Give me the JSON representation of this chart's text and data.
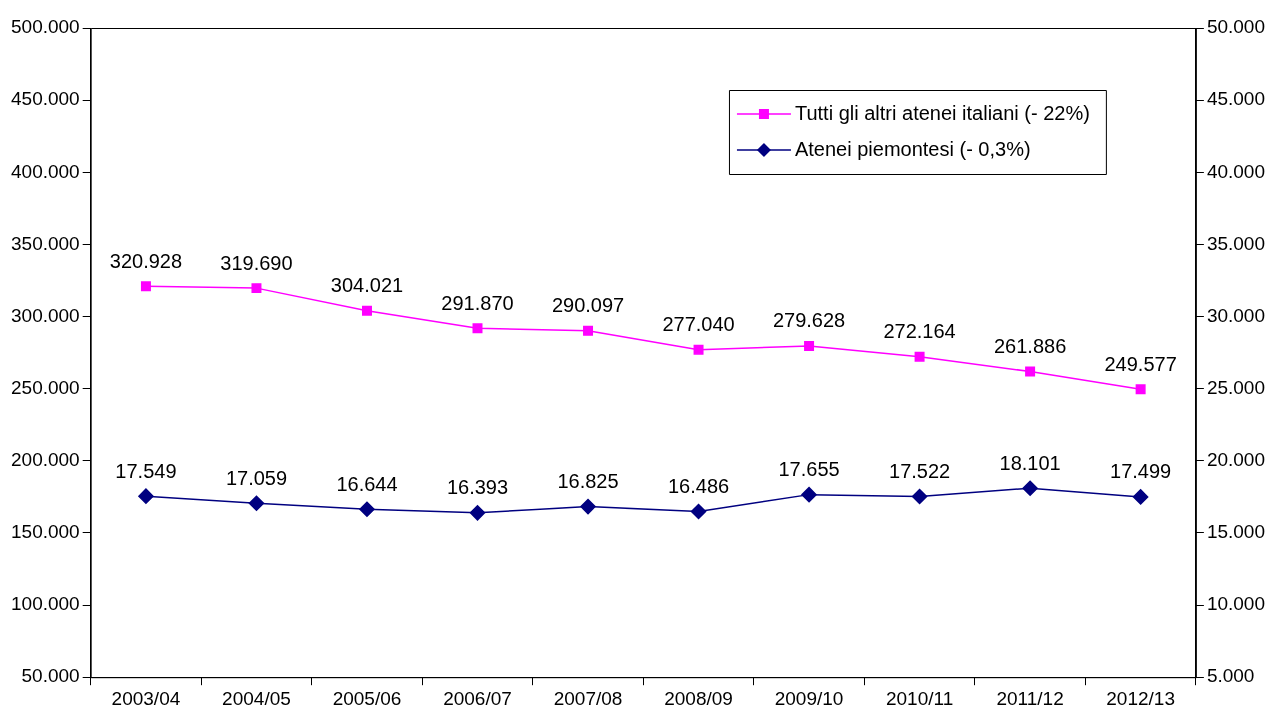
{
  "chart_data": {
    "type": "line",
    "categories": [
      "2003/04",
      "2004/05",
      "2005/06",
      "2006/07",
      "2007/08",
      "2008/09",
      "2009/10",
      "2010/11",
      "2011/12",
      "2012/13"
    ],
    "series": [
      {
        "name": "Tutti gli altri atenei italiani (- 22%)",
        "color": "#ff00ff",
        "marker": "square",
        "values": [
          320928,
          319690,
          304021,
          291870,
          290097,
          277040,
          279628,
          272164,
          261886,
          249577
        ],
        "value_labels": [
          "320.928",
          "319.690",
          "304.021",
          "291.870",
          "290.097",
          "277.040",
          "279.628",
          "272.164",
          "261.886",
          "249.577"
        ]
      },
      {
        "name": "Atenei piemontesi (- 0,3%)",
        "color": "#000080",
        "marker": "diamond",
        "axis": "y2",
        "values": [
          17549,
          17059,
          16644,
          16393,
          16825,
          16486,
          17655,
          17522,
          18101,
          17499
        ],
        "value_labels": [
          "17.549",
          "17.059",
          "16.644",
          "16.393",
          "16.825",
          "16.486",
          "17.655",
          "17.522",
          "18.101",
          "17.499"
        ]
      }
    ],
    "ylim": [
      50000,
      500000
    ],
    "yticks": [
      {
        "value": 50000,
        "label": "50.000"
      },
      {
        "value": 100000,
        "label": "100.000"
      },
      {
        "value": 150000,
        "label": "150.000"
      },
      {
        "value": 200000,
        "label": "200.000"
      },
      {
        "value": 250000,
        "label": "250.000"
      },
      {
        "value": 300000,
        "label": "300.000"
      },
      {
        "value": 350000,
        "label": "350.000"
      },
      {
        "value": 400000,
        "label": "400.000"
      },
      {
        "value": 450000,
        "label": "450.000"
      },
      {
        "value": 500000,
        "label": "500.000"
      }
    ],
    "y2lim": [
      5000,
      50000
    ],
    "y2ticks": [
      {
        "value": 5000,
        "label": "5.000"
      },
      {
        "value": 10000,
        "label": "10.000"
      },
      {
        "value": 15000,
        "label": "15.000"
      },
      {
        "value": 20000,
        "label": "20.000"
      },
      {
        "value": 25000,
        "label": "25.000"
      },
      {
        "value": 30000,
        "label": "30.000"
      },
      {
        "value": 35000,
        "label": "35.000"
      },
      {
        "value": 40000,
        "label": "40.000"
      },
      {
        "value": 45000,
        "label": "45.000"
      },
      {
        "value": 50000,
        "label": "50.000"
      }
    ],
    "grid": false,
    "legend": "top right",
    "line_style": "solid"
  }
}
